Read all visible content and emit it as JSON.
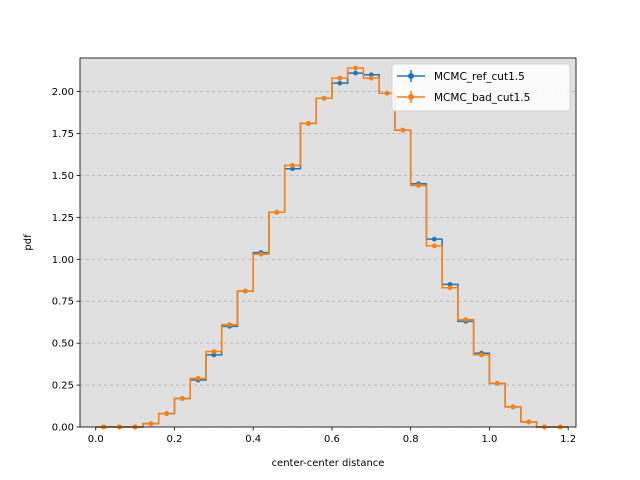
{
  "chart_data": {
    "type": "line",
    "xlabel": "center-center distance",
    "ylabel": "pdf",
    "xlim": [
      -0.04,
      1.22
    ],
    "ylim": [
      0.0,
      2.2
    ],
    "xticks": [
      0.0,
      0.2,
      0.4,
      0.6,
      0.8,
      1.0,
      1.2
    ],
    "xtick_labels": [
      "0.0",
      "0.2",
      "0.4",
      "0.6",
      "0.8",
      "1.0",
      "1.2"
    ],
    "yticks": [
      0.0,
      0.25,
      0.5,
      0.75,
      1.0,
      1.25,
      1.5,
      1.75,
      2.0
    ],
    "ytick_labels": [
      "0.00",
      "0.25",
      "0.50",
      "0.75",
      "1.00",
      "1.25",
      "1.50",
      "1.75",
      "2.00"
    ],
    "grid": "y-dashed",
    "legend_position": "top-right",
    "bin_edges": [
      0.0,
      0.04,
      0.08,
      0.12,
      0.16,
      0.2,
      0.24,
      0.28,
      0.32,
      0.36,
      0.4,
      0.44,
      0.48,
      0.52,
      0.56,
      0.6,
      0.64,
      0.68,
      0.72,
      0.76,
      0.8,
      0.84,
      0.88,
      0.92,
      0.96,
      1.0,
      1.04,
      1.08,
      1.12,
      1.16,
      1.2
    ],
    "x": [
      0.02,
      0.06,
      0.1,
      0.14,
      0.18,
      0.22,
      0.26,
      0.3,
      0.34,
      0.38,
      0.42,
      0.46,
      0.5,
      0.54,
      0.58,
      0.62,
      0.66,
      0.7,
      0.74,
      0.78,
      0.82,
      0.86,
      0.9,
      0.94,
      0.98,
      1.02,
      1.06,
      1.1,
      1.14,
      1.18
    ],
    "series": [
      {
        "name": "MCMC_ref_cut1.5",
        "color": "#1f77b4",
        "values": [
          0.0,
          0.0,
          0.0,
          0.02,
          0.08,
          0.17,
          0.28,
          0.43,
          0.6,
          0.81,
          1.04,
          1.28,
          1.54,
          1.81,
          1.96,
          2.05,
          2.11,
          2.1,
          1.99,
          1.77,
          1.45,
          1.12,
          0.85,
          0.63,
          0.44,
          0.26,
          0.12,
          0.03,
          0.0,
          0.0
        ]
      },
      {
        "name": "MCMC_bad_cut1.5",
        "color": "#ff7f0e",
        "values": [
          0.0,
          0.0,
          0.0,
          0.02,
          0.08,
          0.17,
          0.29,
          0.45,
          0.61,
          0.81,
          1.03,
          1.28,
          1.56,
          1.81,
          1.96,
          2.08,
          2.14,
          2.08,
          1.99,
          1.77,
          1.44,
          1.08,
          0.83,
          0.64,
          0.43,
          0.26,
          0.12,
          0.03,
          0.0,
          0.0
        ]
      }
    ]
  }
}
